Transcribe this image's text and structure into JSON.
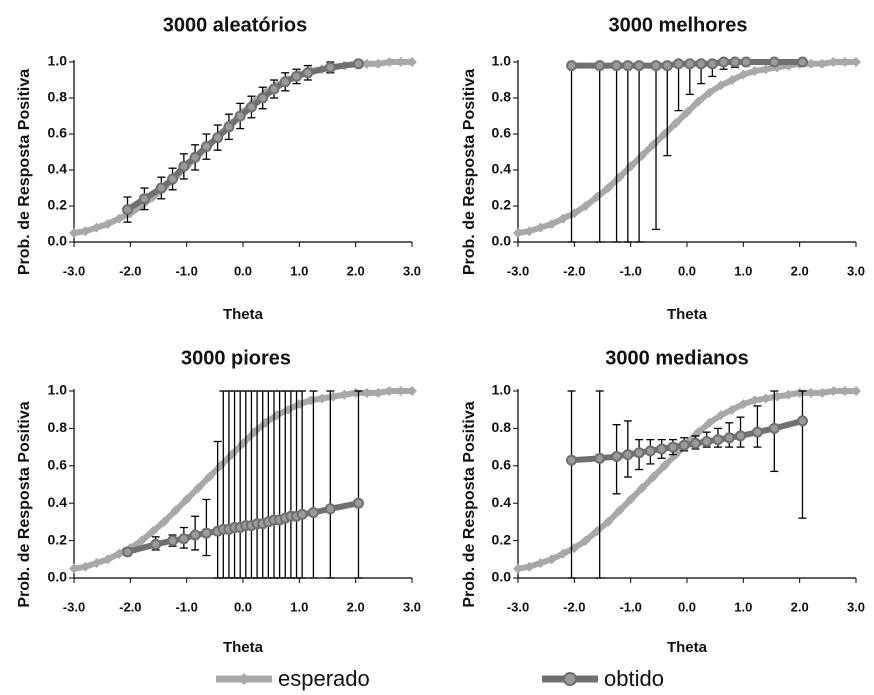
{
  "legend": {
    "esperado": {
      "label": "esperado",
      "color": "#a8a8a8"
    },
    "obtido": {
      "label": "obtido",
      "color": "#707070"
    }
  },
  "chart_data": [
    {
      "type": "line",
      "title": "3000 aleatórios",
      "xlabel": "Theta",
      "ylabel": "Prob. de Resposta Positiva",
      "xlim": [
        -3.0,
        3.0
      ],
      "ylim": [
        0.0,
        1.0
      ],
      "xticks": [
        "-3.0",
        "-2.0",
        "-1.0",
        "0.0",
        "1.0",
        "2.0",
        "3.0"
      ],
      "yticks": [
        "0.0",
        "0.2",
        "0.4",
        "0.6",
        "0.8",
        "1.0"
      ],
      "series": [
        {
          "name": "esperado",
          "x": [
            -3.0,
            -2.8,
            -2.6,
            -2.4,
            -2.2,
            -2.0,
            -1.8,
            -1.6,
            -1.4,
            -1.2,
            -1.0,
            -0.8,
            -0.6,
            -0.4,
            -0.2,
            0.0,
            0.2,
            0.4,
            0.6,
            0.8,
            1.0,
            1.2,
            1.4,
            1.6,
            1.8,
            2.0,
            2.2,
            2.4,
            2.6,
            2.8,
            3.0
          ],
          "y": [
            0.05,
            0.06,
            0.08,
            0.1,
            0.13,
            0.16,
            0.2,
            0.25,
            0.3,
            0.36,
            0.42,
            0.48,
            0.54,
            0.6,
            0.66,
            0.72,
            0.78,
            0.83,
            0.87,
            0.9,
            0.93,
            0.95,
            0.96,
            0.97,
            0.98,
            0.99,
            0.99,
            0.99,
            1.0,
            1.0,
            1.0
          ]
        },
        {
          "name": "obtido",
          "x": [
            -2.05,
            -1.75,
            -1.45,
            -1.25,
            -1.05,
            -0.85,
            -0.65,
            -0.45,
            -0.25,
            -0.05,
            0.15,
            0.35,
            0.55,
            0.75,
            0.95,
            1.15,
            1.55,
            2.05
          ],
          "y": [
            0.18,
            0.24,
            0.3,
            0.35,
            0.42,
            0.47,
            0.53,
            0.58,
            0.64,
            0.7,
            0.75,
            0.8,
            0.85,
            0.89,
            0.92,
            0.94,
            0.97,
            0.99
          ],
          "err": [
            0.07,
            0.06,
            0.06,
            0.06,
            0.07,
            0.07,
            0.07,
            0.07,
            0.07,
            0.07,
            0.06,
            0.06,
            0.05,
            0.05,
            0.04,
            0.04,
            0.03,
            0.01
          ]
        }
      ]
    },
    {
      "type": "line",
      "title": "3000 melhores",
      "xlabel": "Theta",
      "ylabel": "Prob. de Resposta Positiva",
      "xlim": [
        -3.0,
        3.0
      ],
      "ylim": [
        0.0,
        1.0
      ],
      "xticks": [
        "-3.0",
        "-2.0",
        "-1.0",
        "0.0",
        "1.0",
        "2.0",
        "3.0"
      ],
      "yticks": [
        "0.0",
        "0.2",
        "0.4",
        "0.6",
        "0.8",
        "1.0"
      ],
      "series": [
        {
          "name": "esperado",
          "x": [
            -3.0,
            -2.8,
            -2.6,
            -2.4,
            -2.2,
            -2.0,
            -1.8,
            -1.6,
            -1.4,
            -1.2,
            -1.0,
            -0.8,
            -0.6,
            -0.4,
            -0.2,
            0.0,
            0.2,
            0.4,
            0.6,
            0.8,
            1.0,
            1.2,
            1.4,
            1.6,
            1.8,
            2.0,
            2.2,
            2.4,
            2.6,
            2.8,
            3.0
          ],
          "y": [
            0.05,
            0.06,
            0.08,
            0.1,
            0.13,
            0.16,
            0.2,
            0.25,
            0.3,
            0.36,
            0.42,
            0.48,
            0.54,
            0.6,
            0.66,
            0.72,
            0.78,
            0.83,
            0.87,
            0.9,
            0.93,
            0.95,
            0.96,
            0.97,
            0.98,
            0.99,
            0.99,
            0.99,
            1.0,
            1.0,
            1.0
          ]
        },
        {
          "name": "obtido",
          "x": [
            -2.05,
            -1.55,
            -1.25,
            -1.05,
            -0.85,
            -0.55,
            -0.35,
            -0.15,
            0.05,
            0.25,
            0.45,
            0.65,
            0.85,
            1.05,
            1.55,
            2.05
          ],
          "y": [
            0.98,
            0.98,
            0.98,
            0.98,
            0.98,
            0.98,
            0.98,
            0.99,
            0.99,
            0.99,
            0.99,
            1.0,
            1.0,
            1.0,
            1.0,
            1.0
          ],
          "err_low": [
            0.98,
            0.98,
            0.98,
            0.98,
            0.98,
            0.91,
            0.5,
            0.26,
            0.17,
            0.11,
            0.07,
            0.04,
            0.03,
            0.02,
            0.01,
            0.0
          ],
          "err_high": [
            0.01,
            0.01,
            0.01,
            0.01,
            0.01,
            0.01,
            0.01,
            0.01,
            0.01,
            0.01,
            0.01,
            0.0,
            0.0,
            0.0,
            0.0,
            0.0
          ]
        }
      ]
    },
    {
      "type": "line",
      "title": "3000 piores",
      "xlabel": "Theta",
      "ylabel": "Prob. de Resposta Positiva",
      "xlim": [
        -3.0,
        3.0
      ],
      "ylim": [
        0.0,
        1.0
      ],
      "xticks": [
        "-3.0",
        "-2.0",
        "-1.0",
        "0.0",
        "1.0",
        "2.0",
        "3.0"
      ],
      "yticks": [
        "0.0",
        "0.2",
        "0.4",
        "0.6",
        "0.8",
        "1.0"
      ],
      "series": [
        {
          "name": "esperado",
          "x": [
            -3.0,
            -2.8,
            -2.6,
            -2.4,
            -2.2,
            -2.0,
            -1.8,
            -1.6,
            -1.4,
            -1.2,
            -1.0,
            -0.8,
            -0.6,
            -0.4,
            -0.2,
            0.0,
            0.2,
            0.4,
            0.6,
            0.8,
            1.0,
            1.2,
            1.4,
            1.6,
            1.8,
            2.0,
            2.2,
            2.4,
            2.6,
            2.8,
            3.0
          ],
          "y": [
            0.05,
            0.06,
            0.08,
            0.1,
            0.13,
            0.16,
            0.2,
            0.25,
            0.3,
            0.36,
            0.42,
            0.48,
            0.54,
            0.6,
            0.66,
            0.72,
            0.78,
            0.83,
            0.87,
            0.9,
            0.93,
            0.95,
            0.96,
            0.97,
            0.98,
            0.99,
            0.99,
            0.99,
            1.0,
            1.0,
            1.0
          ]
        },
        {
          "name": "obtido",
          "x": [
            -2.05,
            -1.55,
            -1.25,
            -1.05,
            -0.85,
            -0.65,
            -0.45,
            -0.35,
            -0.25,
            -0.15,
            -0.05,
            0.05,
            0.15,
            0.25,
            0.35,
            0.45,
            0.55,
            0.65,
            0.75,
            0.85,
            0.95,
            1.05,
            1.25,
            1.55,
            2.05
          ],
          "y": [
            0.14,
            0.18,
            0.2,
            0.21,
            0.23,
            0.24,
            0.25,
            0.26,
            0.26,
            0.27,
            0.27,
            0.28,
            0.28,
            0.29,
            0.29,
            0.3,
            0.31,
            0.31,
            0.32,
            0.33,
            0.33,
            0.34,
            0.35,
            0.37,
            0.4
          ],
          "err_low": [
            0.02,
            0.03,
            0.03,
            0.05,
            0.08,
            0.12,
            0.25,
            0.26,
            0.26,
            0.27,
            0.27,
            0.28,
            0.28,
            0.29,
            0.29,
            0.3,
            0.31,
            0.31,
            0.32,
            0.33,
            0.33,
            0.34,
            0.35,
            0.37,
            0.4
          ],
          "err_high": [
            0.02,
            0.04,
            0.03,
            0.06,
            0.1,
            0.18,
            0.48,
            0.74,
            0.74,
            0.73,
            0.73,
            0.72,
            0.72,
            0.71,
            0.71,
            0.7,
            0.69,
            0.69,
            0.68,
            0.67,
            0.67,
            0.66,
            0.65,
            0.63,
            0.6
          ]
        }
      ]
    },
    {
      "type": "line",
      "title": "3000 medianos",
      "xlabel": "Theta",
      "ylabel": "Prob. de Resposta Positiva",
      "xlim": [
        -3.0,
        3.0
      ],
      "ylim": [
        0.0,
        1.0
      ],
      "xticks": [
        "-3.0",
        "-2.0",
        "-1.0",
        "0.0",
        "1.0",
        "2.0",
        "3.0"
      ],
      "yticks": [
        "0.0",
        "0.2",
        "0.4",
        "0.6",
        "0.8",
        "1.0"
      ],
      "series": [
        {
          "name": "esperado",
          "x": [
            -3.0,
            -2.8,
            -2.6,
            -2.4,
            -2.2,
            -2.0,
            -1.8,
            -1.6,
            -1.4,
            -1.2,
            -1.0,
            -0.8,
            -0.6,
            -0.4,
            -0.2,
            0.0,
            0.2,
            0.4,
            0.6,
            0.8,
            1.0,
            1.2,
            1.4,
            1.6,
            1.8,
            2.0,
            2.2,
            2.4,
            2.6,
            2.8,
            3.0
          ],
          "y": [
            0.05,
            0.06,
            0.08,
            0.1,
            0.13,
            0.16,
            0.2,
            0.25,
            0.3,
            0.36,
            0.42,
            0.48,
            0.54,
            0.6,
            0.66,
            0.72,
            0.78,
            0.83,
            0.87,
            0.9,
            0.93,
            0.95,
            0.96,
            0.97,
            0.98,
            0.99,
            0.99,
            0.99,
            1.0,
            1.0,
            1.0
          ]
        },
        {
          "name": "obtido",
          "x": [
            -2.05,
            -1.55,
            -1.25,
            -1.05,
            -0.85,
            -0.65,
            -0.45,
            -0.25,
            -0.05,
            0.15,
            0.35,
            0.55,
            0.75,
            0.95,
            1.25,
            1.55,
            2.05
          ],
          "y": [
            0.63,
            0.64,
            0.65,
            0.66,
            0.67,
            0.68,
            0.69,
            0.7,
            0.71,
            0.72,
            0.73,
            0.74,
            0.75,
            0.76,
            0.78,
            0.8,
            0.84
          ],
          "err_low": [
            0.63,
            0.64,
            0.2,
            0.12,
            0.09,
            0.07,
            0.05,
            0.04,
            0.03,
            0.03,
            0.03,
            0.04,
            0.05,
            0.06,
            0.08,
            0.23,
            0.52
          ],
          "err_high": [
            0.37,
            0.36,
            0.17,
            0.18,
            0.07,
            0.06,
            0.05,
            0.04,
            0.04,
            0.04,
            0.05,
            0.06,
            0.08,
            0.1,
            0.14,
            0.2,
            0.16
          ]
        }
      ]
    }
  ]
}
